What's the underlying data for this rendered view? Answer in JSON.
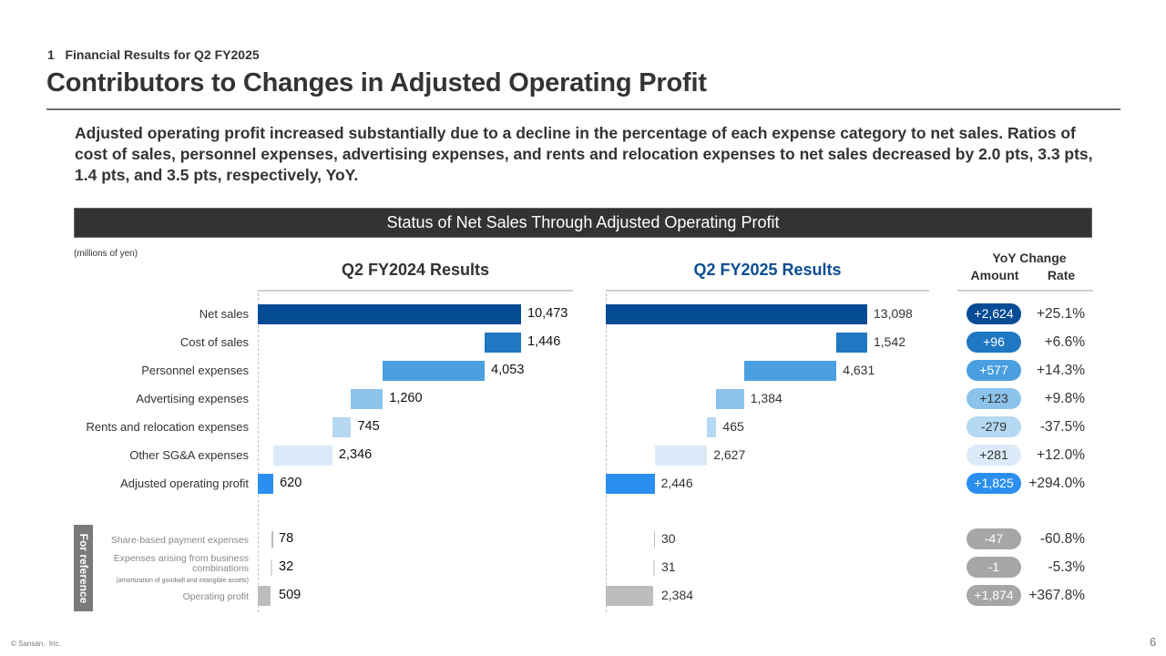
{
  "header": {
    "section": "1   Financial Results for Q2 FY2025",
    "title": "Contributors to Changes in Adjusted Operating Profit"
  },
  "summary": "Adjusted operating profit increased substantially due to a decline in the percentage of each expense category to net sales. Ratios of cost of sales, personnel expenses, advertising expenses, and rents and relocation expenses to net sales decreased by 2.0 pts, 3.3 pts, 1.4 pts, and 3.5 pts, respectively, YoY.",
  "banner": "Status of Net Sales Through Adjusted Operating Profit",
  "units": "(millions of yen)",
  "reference_label": "For reference",
  "footer": {
    "copyright": "© Sansan,  Inc.",
    "page": "6"
  },
  "chart_data": {
    "type": "bar",
    "subtype": "waterfall",
    "title": "Status of Net Sales Through Adjusted Operating Profit",
    "unit": "millions of yen",
    "categories": [
      "Net sales",
      "Cost of sales",
      "Personnel expenses",
      "Advertising expenses",
      "Rents and relocation expenses",
      "Other SG&A expenses",
      "Adjusted operating profit"
    ],
    "reference_categories": [
      "Share-based payment expenses",
      "Expenses arising from business combinations",
      "Operating profit"
    ],
    "reference_note": "(amortization of goodwill and intangible assets)",
    "panels": [
      {
        "name": "Q2 FY2024 Results",
        "title_color": "#333333",
        "values": [
          10473,
          1446,
          4053,
          1260,
          745,
          2346,
          620
        ],
        "labels": [
          "10,473",
          "1,446",
          "4,053",
          "1,260",
          "745",
          "2,346",
          "620"
        ],
        "reference_values": [
          78,
          32,
          509
        ],
        "reference_labels": [
          "78",
          "32",
          "509"
        ]
      },
      {
        "name": "Q2 FY2025 Results",
        "title_color": "#0b4d94",
        "values": [
          13098,
          1542,
          4631,
          1384,
          465,
          2627,
          2446
        ],
        "labels": [
          "13,098",
          "1,542",
          "4,631",
          "1,384",
          "465",
          "2,627",
          "2,446"
        ],
        "reference_values": [
          30,
          31,
          2384
        ],
        "reference_labels": [
          "30",
          "31",
          "2,384"
        ]
      }
    ],
    "bar_colors": [
      "#064c94",
      "#1f78c1",
      "#4a9fe0",
      "#8cc3ec",
      "#b5d8f3",
      "#dbeaf8",
      "#2b8ff0"
    ],
    "reference_bar_color": "#bdbdbd",
    "yoy": {
      "title": "YoY Change",
      "amount_header": "Amount",
      "rate_header": "Rate",
      "amounts": [
        "+2,624",
        "+96",
        "+577",
        "+123",
        "-279",
        "+281",
        "+1,825"
      ],
      "rates": [
        "+25.1%",
        "+6.6%",
        "+14.3%",
        "+9.8%",
        "-37.5%",
        "+12.0%",
        "+294.0%"
      ],
      "reference_amounts": [
        "-47",
        "-1",
        "+1,874"
      ],
      "reference_rates": [
        "-60.8%",
        "-5.3%",
        "+367.8%"
      ],
      "pill_text_colors": [
        "#ffffff",
        "#ffffff",
        "#ffffff",
        "#333333",
        "#333333",
        "#333333",
        "#ffffff"
      ]
    }
  }
}
